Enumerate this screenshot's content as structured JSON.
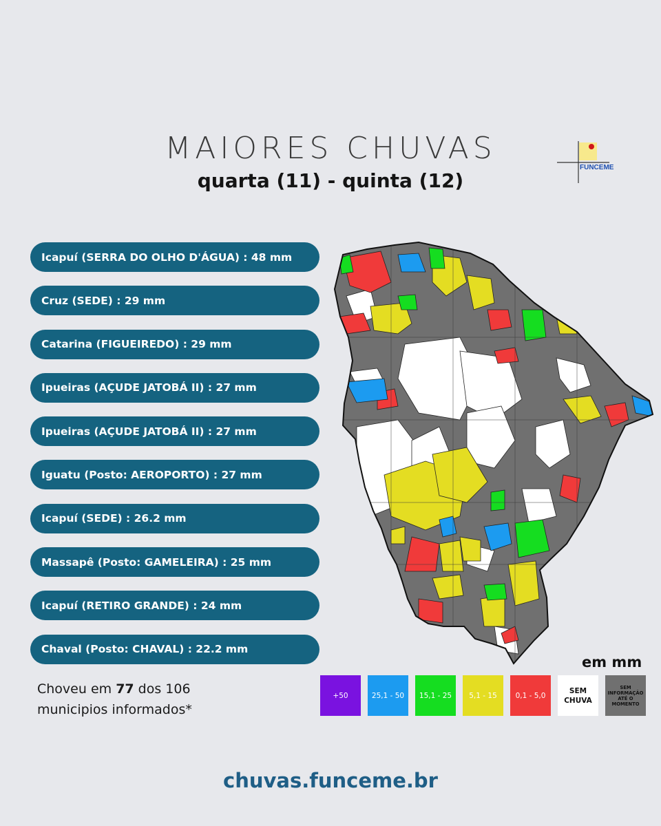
{
  "header": {
    "title": "MAIORES CHUVAS",
    "subtitle": "quarta (11) - quinta (12)",
    "logo_text": "FUNCEME"
  },
  "ranking": [
    "Icapuí (SERRA DO OLHO D'ÁGUA) : 48 mm",
    "Cruz (SEDE) : 29 mm",
    "Catarina (FIGUEIREDO) : 29 mm",
    "Ipueiras (AÇUDE JATOBÁ II) : 27 mm",
    "Ipueiras (AÇUDE JATOBÁ II) : 27 mm",
    "Iguatu (Posto: AEROPORTO) : 27 mm",
    "Icapuí (SEDE) : 26.2 mm",
    "Massapê (Posto: GAMELEIRA) : 25 mm",
    "Icapuí (RETIRO GRANDE) : 24 mm",
    "Chaval (Posto: CHAVAL) : 22.2 mm"
  ],
  "summary": {
    "prefix": "Choveu em ",
    "count": "77",
    "middle": " dos 106",
    "line2": "municipios informados*"
  },
  "legend": {
    "unit": "em mm",
    "items": [
      {
        "label": "+50",
        "color": "#7a12e0"
      },
      {
        "label": "25,1 - 50",
        "color": "#1c9bf0"
      },
      {
        "label": "15,1 - 25",
        "color": "#15dd20"
      },
      {
        "label": "5,1 - 15",
        "color": "#e4dd22"
      },
      {
        "label": "0,1 - 5,0",
        "color": "#f03a3a"
      },
      {
        "label": "SEM CHUVA",
        "color": "#ffffff"
      },
      {
        "label": "SEM INFORMAÇÃO ATÉ O MOMENTO",
        "color": "#707070"
      }
    ]
  },
  "footer": {
    "url": "chuvas.funceme.br"
  }
}
